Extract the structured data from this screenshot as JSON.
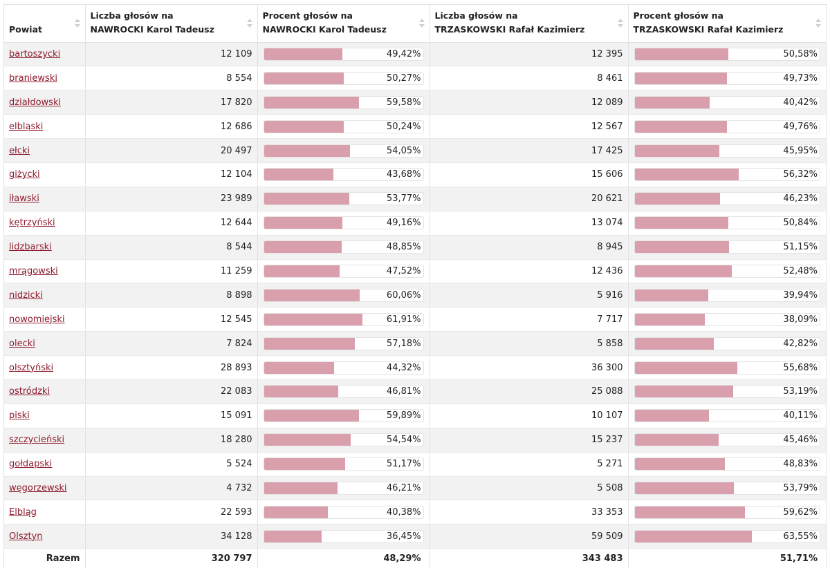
{
  "table": {
    "headers": {
      "powiat": "Powiat",
      "n_count_l1": "Liczba głosów na",
      "n_count_l2": "NAWROCKI Karol Tadeusz",
      "n_pct_l1": "Procent głosów na",
      "n_pct_l2": "NAWROCKI Karol Tadeusz",
      "t_count_l1": "Liczba głosów na",
      "t_count_l2": "TRZASKOWSKI Rafał Kazimierz",
      "t_pct_l1": "Procent głosów na",
      "t_pct_l2": "TRZASKOWSKI Rafał Kazimierz"
    },
    "rows": [
      {
        "name": "bartoszycki",
        "n_votes": "12 109",
        "n_pct": "49,42%",
        "n_frac": 0.4942,
        "t_votes": "12 395",
        "t_pct": "50,58%",
        "t_frac": 0.5058
      },
      {
        "name": "braniewski",
        "n_votes": "8 554",
        "n_pct": "50,27%",
        "n_frac": 0.5027,
        "t_votes": "8 461",
        "t_pct": "49,73%",
        "t_frac": 0.4973
      },
      {
        "name": "działdowski",
        "n_votes": "17 820",
        "n_pct": "59,58%",
        "n_frac": 0.5958,
        "t_votes": "12 089",
        "t_pct": "40,42%",
        "t_frac": 0.4042
      },
      {
        "name": "elbląski",
        "n_votes": "12 686",
        "n_pct": "50,24%",
        "n_frac": 0.5024,
        "t_votes": "12 567",
        "t_pct": "49,76%",
        "t_frac": 0.4976
      },
      {
        "name": "ełcki",
        "n_votes": "20 497",
        "n_pct": "54,05%",
        "n_frac": 0.5405,
        "t_votes": "17 425",
        "t_pct": "45,95%",
        "t_frac": 0.4595
      },
      {
        "name": "giżycki",
        "n_votes": "12 104",
        "n_pct": "43,68%",
        "n_frac": 0.4368,
        "t_votes": "15 606",
        "t_pct": "56,32%",
        "t_frac": 0.5632
      },
      {
        "name": "iławski",
        "n_votes": "23 989",
        "n_pct": "53,77%",
        "n_frac": 0.5377,
        "t_votes": "20 621",
        "t_pct": "46,23%",
        "t_frac": 0.4623
      },
      {
        "name": "kętrzyński",
        "n_votes": "12 644",
        "n_pct": "49,16%",
        "n_frac": 0.4916,
        "t_votes": "13 074",
        "t_pct": "50,84%",
        "t_frac": 0.5084
      },
      {
        "name": "lidzbarski",
        "n_votes": "8 544",
        "n_pct": "48,85%",
        "n_frac": 0.4885,
        "t_votes": "8 945",
        "t_pct": "51,15%",
        "t_frac": 0.5115
      },
      {
        "name": "mrągowski",
        "n_votes": "11 259",
        "n_pct": "47,52%",
        "n_frac": 0.4752,
        "t_votes": "12 436",
        "t_pct": "52,48%",
        "t_frac": 0.5248
      },
      {
        "name": "nidzicki",
        "n_votes": "8 898",
        "n_pct": "60,06%",
        "n_frac": 0.6006,
        "t_votes": "5 916",
        "t_pct": "39,94%",
        "t_frac": 0.3994
      },
      {
        "name": "nowomiejski",
        "n_votes": "12 545",
        "n_pct": "61,91%",
        "n_frac": 0.6191,
        "t_votes": "7 717",
        "t_pct": "38,09%",
        "t_frac": 0.3809
      },
      {
        "name": "olecki",
        "n_votes": "7 824",
        "n_pct": "57,18%",
        "n_frac": 0.5718,
        "t_votes": "5 858",
        "t_pct": "42,82%",
        "t_frac": 0.4282
      },
      {
        "name": "olsztyński",
        "n_votes": "28 893",
        "n_pct": "44,32%",
        "n_frac": 0.4432,
        "t_votes": "36 300",
        "t_pct": "55,68%",
        "t_frac": 0.5568
      },
      {
        "name": "ostródzki",
        "n_votes": "22 083",
        "n_pct": "46,81%",
        "n_frac": 0.4681,
        "t_votes": "25 088",
        "t_pct": "53,19%",
        "t_frac": 0.5319
      },
      {
        "name": "piski",
        "n_votes": "15 091",
        "n_pct": "59,89%",
        "n_frac": 0.5989,
        "t_votes": "10 107",
        "t_pct": "40,11%",
        "t_frac": 0.4011
      },
      {
        "name": "szczycieński",
        "n_votes": "18 280",
        "n_pct": "54,54%",
        "n_frac": 0.5454,
        "t_votes": "15 237",
        "t_pct": "45,46%",
        "t_frac": 0.4546
      },
      {
        "name": "gołdapski",
        "n_votes": "5 524",
        "n_pct": "51,17%",
        "n_frac": 0.5117,
        "t_votes": "5 271",
        "t_pct": "48,83%",
        "t_frac": 0.4883
      },
      {
        "name": "węgorzewski",
        "n_votes": "4 732",
        "n_pct": "46,21%",
        "n_frac": 0.4621,
        "t_votes": "5 508",
        "t_pct": "53,79%",
        "t_frac": 0.5379
      },
      {
        "name": "Elbląg",
        "n_votes": "22 593",
        "n_pct": "40,38%",
        "n_frac": 0.4038,
        "t_votes": "33 353",
        "t_pct": "59,62%",
        "t_frac": 0.5962
      },
      {
        "name": "Olsztyn",
        "n_votes": "34 128",
        "n_pct": "36,45%",
        "n_frac": 0.3645,
        "t_votes": "59 509",
        "t_pct": "63,55%",
        "t_frac": 0.6355
      }
    ],
    "footer": {
      "label": "Razem",
      "n_votes": "320 797",
      "n_pct": "48,29%",
      "t_votes": "343 483",
      "t_pct": "51,71%"
    }
  },
  "colors": {
    "bar_fill": "#d99fac",
    "link": "#8d1b2c",
    "row_alt": "#f2f2f2"
  }
}
